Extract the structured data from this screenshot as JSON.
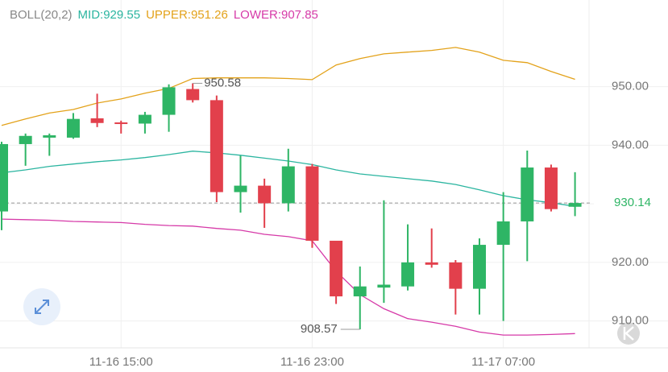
{
  "chart_data": {
    "type": "candlestick",
    "indicator": "BOLL(20,2)",
    "indicator_values": [
      {
        "text": "MID:929.55",
        "color": "#2bb5a0"
      },
      {
        "text": "UPPER:951.26",
        "color": "#e3a21a"
      },
      {
        "text": "LOWER:907.85",
        "color": "#d63aa8"
      }
    ],
    "categories": [
      null,
      null,
      null,
      null,
      null,
      "11-16 15:00",
      null,
      null,
      null,
      null,
      null,
      null,
      null,
      "11-16 23:00",
      null,
      null,
      null,
      null,
      null,
      null,
      null,
      "11-17 07:00",
      null,
      null,
      null
    ],
    "open": [
      928.7,
      940.2,
      941.3,
      941.3,
      944.6,
      943.9,
      943.7,
      945.2,
      949.6,
      947.7,
      932.0,
      933.1,
      930.1,
      936.4,
      923.7,
      914.2,
      915.7,
      915.9,
      920.0,
      920.0,
      915.5,
      923.0,
      927.0,
      936.2,
      929.5
    ],
    "high": [
      940.6,
      942.0,
      942.0,
      945.5,
      948.8,
      944.2,
      945.7,
      950.4,
      950.58,
      948.5,
      938.2,
      934.3,
      939.4,
      936.8,
      923.7,
      919.3,
      930.6,
      926.5,
      925.8,
      920.4,
      924.1,
      932.0,
      939.1,
      936.7,
      935.4
    ],
    "low": [
      925.5,
      936.5,
      938.2,
      941.1,
      943.1,
      942.0,
      942.0,
      942.3,
      947.3,
      930.3,
      928.5,
      925.9,
      928.7,
      922.5,
      912.9,
      908.57,
      913.1,
      915.2,
      919.1,
      911.1,
      911.1,
      910.0,
      920.2,
      928.7,
      927.9
    ],
    "close": [
      940.2,
      941.6,
      941.7,
      944.5,
      943.8,
      943.8,
      945.2,
      949.9,
      947.7,
      932.0,
      933.1,
      930.1,
      936.4,
      923.7,
      914.2,
      915.9,
      916.2,
      920.0,
      919.6,
      915.5,
      923.0,
      927.0,
      936.2,
      929.1,
      930.14
    ],
    "up_color": "#2eb565",
    "down_color": "#e2404c",
    "overlays": [
      {
        "name": "UPPER",
        "color": "#e3a21a",
        "values": [
          943.4,
          944.5,
          945.5,
          946.1,
          947.2,
          947.9,
          948.9,
          949.7,
          951.4,
          951.5,
          951.5,
          951.5,
          951.4,
          951.2,
          953.7,
          954.8,
          955.6,
          955.9,
          956.2,
          956.7,
          955.9,
          954.5,
          954.1,
          952.6,
          951.26
        ]
      },
      {
        "name": "MID",
        "color": "#2bb5a0",
        "values": [
          935.3,
          935.8,
          936.4,
          936.8,
          937.2,
          937.5,
          937.9,
          938.4,
          939.0,
          938.7,
          938.3,
          937.8,
          937.3,
          936.7,
          935.8,
          935.1,
          934.7,
          934.3,
          933.9,
          933.3,
          932.4,
          931.4,
          930.7,
          930.2,
          929.55
        ]
      },
      {
        "name": "LOWER",
        "color": "#d63aa8",
        "values": [
          927.4,
          927.3,
          927.2,
          927.0,
          926.9,
          926.8,
          926.5,
          926.3,
          926.2,
          925.8,
          925.5,
          924.8,
          924.4,
          923.7,
          918.5,
          914.5,
          912.1,
          910.4,
          909.8,
          909.1,
          908.1,
          907.6,
          907.6,
          907.7,
          907.85
        ]
      }
    ],
    "ylim": [
      905,
      964.8
    ],
    "yticks": [
      {
        "value": 910,
        "label": "910.00"
      },
      {
        "value": 920,
        "label": "920.00"
      },
      {
        "value": 930,
        "label": "930.00"
      },
      {
        "value": 940,
        "label": "940.00"
      },
      {
        "value": 950,
        "label": "950.00"
      }
    ],
    "grid": true
  }
}
